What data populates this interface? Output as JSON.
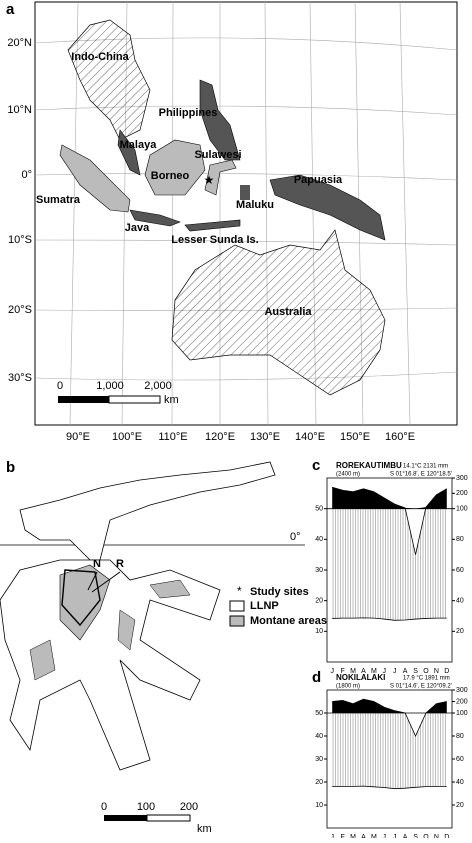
{
  "map_a": {
    "label": "a",
    "lat_labels": [
      "20°N",
      "10°N",
      "0°",
      "10°S",
      "20°S",
      "30°S"
    ],
    "lon_labels": [
      "90°E",
      "100°E",
      "110°E",
      "120°E",
      "130°E",
      "140°E",
      "150°E",
      "160°E"
    ],
    "regions": [
      "Indo-China",
      "Philippines",
      "Malaya",
      "Sulawesi",
      "Borneo",
      "Papuasia",
      "Sumatra",
      "Maluku",
      "Java",
      "Lesser Sunda Is.",
      "Australia"
    ],
    "scale": [
      "0",
      "1,000",
      "2,000",
      "km"
    ]
  },
  "map_b": {
    "label": "b",
    "equator": "0°",
    "sites": [
      "N",
      "R"
    ],
    "legend": [
      "Study sites",
      "LLNP",
      "Montane areas"
    ],
    "scale": [
      "0",
      "100",
      "200",
      "km"
    ]
  },
  "chart_data": [
    {
      "type": "climate",
      "label": "c",
      "title": "ROREKAUTIMBU",
      "elevation": "(2400 m)",
      "summary": "14.1°C  2131 mm",
      "coords": "S 01°16.8', E 120°18.5'",
      "categories": [
        "J",
        "F",
        "M",
        "A",
        "M",
        "J",
        "J",
        "A",
        "S",
        "O",
        "N",
        "D"
      ],
      "series": [
        {
          "name": "Temperature",
          "color": "#000000",
          "values": [
            14.2,
            14.3,
            14.3,
            14.4,
            14.3,
            14.0,
            13.6,
            13.7,
            14.0,
            14.2,
            14.3,
            14.3
          ]
        },
        {
          "name": "Precipitation",
          "color": "#000000",
          "axis": "y2",
          "values": [
            240,
            220,
            210,
            230,
            210,
            170,
            130,
            105,
            70,
            110,
            190,
            230
          ]
        }
      ],
      "ylim": [
        0,
        60
      ],
      "yticks": [
        10,
        20,
        30,
        40,
        50
      ],
      "y2ticks": [
        20,
        40,
        60,
        80,
        100,
        200,
        300
      ]
    },
    {
      "type": "climate",
      "label": "d",
      "title": "NOKILALAKI",
      "elevation": "(1800 m)",
      "summary": "17.9 °C  1891 mm",
      "coords": "S 01°14.6', E 120°09.2'",
      "categories": [
        "J",
        "F",
        "M",
        "A",
        "M",
        "J",
        "J",
        "A",
        "S",
        "O",
        "N",
        "D"
      ],
      "series": [
        {
          "name": "Temperature",
          "color": "#000000",
          "values": [
            18.0,
            18.1,
            18.1,
            18.2,
            17.9,
            17.6,
            17.1,
            17.3,
            17.7,
            18.0,
            18.1,
            18.1
          ]
        },
        {
          "name": "Precipitation",
          "color": "#000000",
          "axis": "y2",
          "values": [
            200,
            210,
            180,
            220,
            200,
            150,
            120,
            100,
            80,
            100,
            180,
            200
          ]
        }
      ],
      "ylim": [
        0,
        60
      ],
      "yticks": [
        10,
        20,
        30,
        40,
        50
      ],
      "y2ticks": [
        20,
        40,
        60,
        80,
        100,
        200,
        300
      ]
    }
  ]
}
